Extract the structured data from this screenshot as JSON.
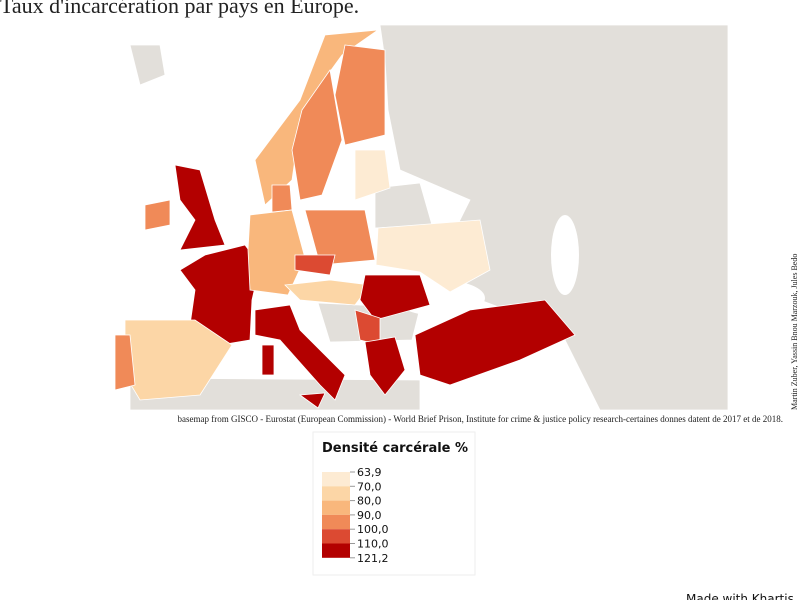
{
  "header": {
    "title": "Taux d'incarcération par pays en Europe."
  },
  "map": {
    "source": "basemap from GISCO - Eurostat (European Commission) - World Brief Prison, Institute for crime & justice policy research-certaines donnes datent de 2017 et de 2018.",
    "credits": "Martin Zuber, Yassin Bnou Marzouk, Jules Bedo"
  },
  "legend": {
    "title": "Densité carcérale %",
    "labels": [
      "63,9",
      "70,0",
      "80,0",
      "90,0",
      "100,0",
      "110,0",
      "121,2"
    ],
    "colors": [
      "#fdebd3",
      "#fcd6a6",
      "#f9b77c",
      "#f08a58",
      "#dc4a32",
      "#b30000"
    ]
  },
  "footer": {
    "made_with": "Made with Khartis"
  }
}
